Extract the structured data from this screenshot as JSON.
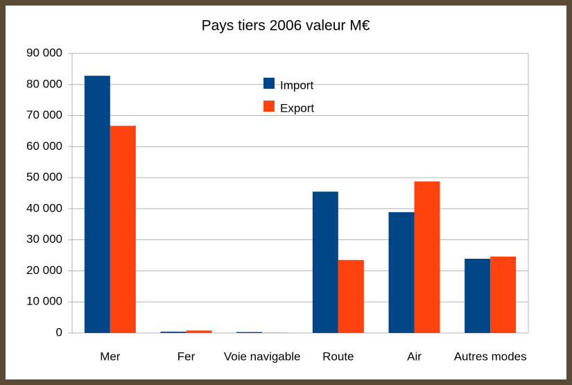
{
  "chart_data": {
    "type": "bar",
    "title": "Pays tiers 2006 valeur M€",
    "categories": [
      "Mer",
      "Fer",
      "Voie navigable",
      "Route",
      "Air",
      "Autres modes"
    ],
    "series": [
      {
        "name": "Import",
        "color": "#004586",
        "values": [
          82800,
          400,
          300,
          45500,
          38900,
          23900
        ]
      },
      {
        "name": "Export",
        "color": "#ff420e",
        "values": [
          66700,
          800,
          100,
          23500,
          48800,
          24600
        ]
      }
    ],
    "ylim": [
      0,
      90000
    ],
    "yticks": [
      0,
      {
        "value": 10000,
        "label": "10 000"
      },
      {
        "value": 20000,
        "label": "20 000"
      },
      {
        "value": 30000,
        "label": "30 000"
      },
      {
        "value": 40000,
        "label": "40 000"
      },
      {
        "value": 50000,
        "label": "50 000"
      },
      {
        "value": 60000,
        "label": "60 000"
      },
      {
        "value": 70000,
        "label": "70 000"
      },
      {
        "value": 80000,
        "label": "80 000"
      },
      {
        "value": 90000,
        "label": "90 000"
      }
    ],
    "grid": true,
    "legend": "top"
  }
}
